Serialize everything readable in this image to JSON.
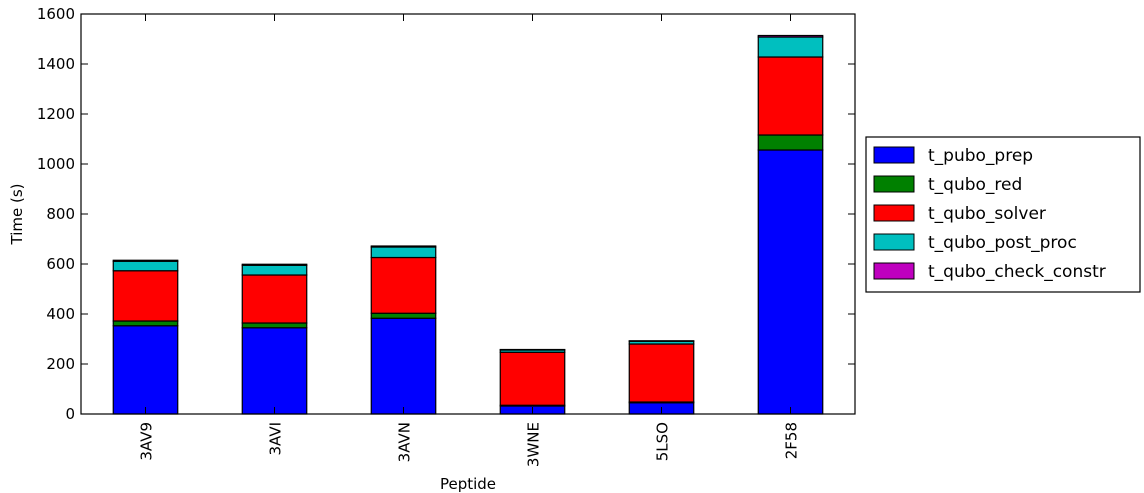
{
  "chart_data": {
    "type": "bar",
    "stacked": true,
    "title": "",
    "xlabel": "Peptide",
    "ylabel": "Time (s)",
    "ylim": [
      0,
      1600
    ],
    "yticks": [
      0,
      200,
      400,
      600,
      800,
      1000,
      1200,
      1400,
      1600
    ],
    "grid": false,
    "legend_position": "right, outside plot",
    "categories": [
      "3AV9",
      "3AVI",
      "3AVN",
      "3WNE",
      "5LSO",
      "2F58"
    ],
    "series": [
      {
        "name": "t_pubo_prep",
        "color": "#0000ff",
        "values": [
          353,
          345,
          383,
          32,
          45,
          1056
        ]
      },
      {
        "name": "t_qubo_red",
        "color": "#008000",
        "values": [
          19,
          19,
          20,
          3,
          3,
          60
        ]
      },
      {
        "name": "t_qubo_solver",
        "color": "#ff0000",
        "values": [
          201,
          192,
          223,
          212,
          232,
          312
        ]
      },
      {
        "name": "t_qubo_post_proc",
        "color": "#00bfbf",
        "values": [
          38,
          39,
          42,
          9,
          11,
          80
        ]
      },
      {
        "name": "t_qubo_check_constr",
        "color": "#bf00bf",
        "values": [
          4,
          4,
          4,
          2,
          2,
          6
        ]
      }
    ]
  }
}
